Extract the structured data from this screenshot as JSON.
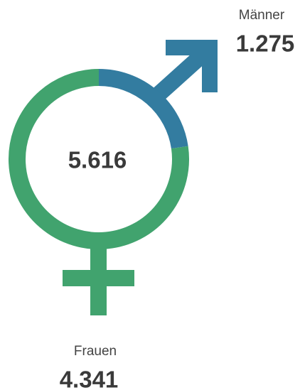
{
  "chart_data": {
    "type": "pie",
    "donut": true,
    "categories": [
      "Männer",
      "Frauen"
    ],
    "values": [
      1275,
      4341
    ],
    "value_labels": [
      "1.275",
      "4.341"
    ],
    "colors": [
      "#337ca0",
      "#41a36e"
    ],
    "total": {
      "value": 5616,
      "label": "5.616"
    }
  }
}
